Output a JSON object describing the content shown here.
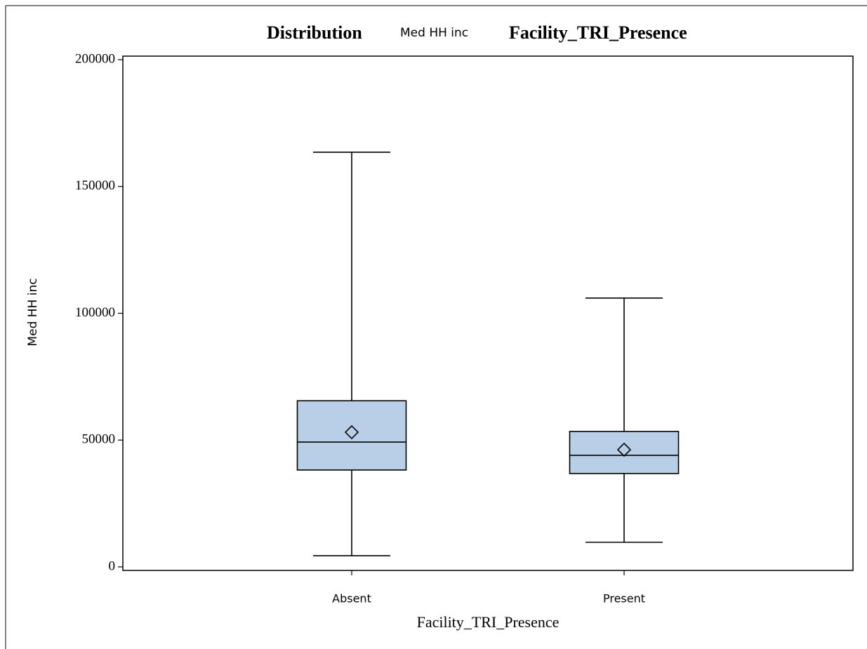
{
  "chart_data": {
    "type": "box",
    "title_parts": [
      "Distribution",
      "Med HH inc",
      "Facility_TRI_Presence"
    ],
    "x_label": "Facility_TRI_Presence",
    "y_label": "Med HH inc",
    "categories": [
      "Absent",
      "Present"
    ],
    "boxes": [
      {
        "min": 4400,
        "q1": 38200,
        "median": 49200,
        "q3": 65500,
        "max": 163500,
        "mean": 53100
      },
      {
        "min": 9700,
        "q1": 36800,
        "median": 44000,
        "q3": 53400,
        "max": 106000,
        "mean": 46200
      }
    ],
    "color": "#b9cfe7",
    "ylim": [
      -1400,
      201400
    ],
    "yticks": [
      0,
      50000,
      100000,
      150000,
      200000
    ]
  }
}
